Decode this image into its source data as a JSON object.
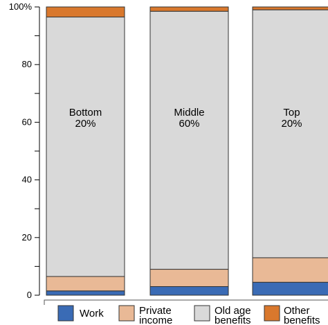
{
  "chart_data": {
    "type": "bar",
    "stacked": true,
    "categories": [
      "Bottom 20%",
      "Middle 60%",
      "Top 20%"
    ],
    "category_labels": [
      {
        "name": "Bottom",
        "share": "20%"
      },
      {
        "name": "Middle",
        "share": "60%"
      },
      {
        "name": "Top",
        "share": "20%"
      }
    ],
    "series": [
      {
        "name": "Work",
        "color": "#3a6bb5",
        "values": [
          1.5,
          3.0,
          4.5
        ]
      },
      {
        "name": "Private income",
        "color": "#e9b996",
        "values": [
          5.0,
          6.0,
          8.5
        ]
      },
      {
        "name": "Old age benefits",
        "color": "#d9d9d9",
        "values": [
          90.0,
          89.5,
          86.0
        ]
      },
      {
        "name": "Other benefits",
        "color": "#d9782d",
        "values": [
          3.5,
          1.5,
          1.0
        ]
      }
    ],
    "legend_labels": [
      [
        "Work"
      ],
      [
        "Private",
        "income"
      ],
      [
        "Old age",
        "benefits"
      ],
      [
        "Other",
        "benefits"
      ]
    ],
    "y_ticks": [
      {
        "value": 0,
        "label": "0"
      },
      {
        "value": 20,
        "label": "20"
      },
      {
        "value": 40,
        "label": "40"
      },
      {
        "value": 60,
        "label": "60"
      },
      {
        "value": 80,
        "label": "80"
      },
      {
        "value": 100,
        "label": "100%"
      }
    ],
    "ylim": [
      0,
      100
    ],
    "title": "",
    "xlabel": "",
    "ylabel": "",
    "grid": false,
    "legend_position": "bottom"
  }
}
